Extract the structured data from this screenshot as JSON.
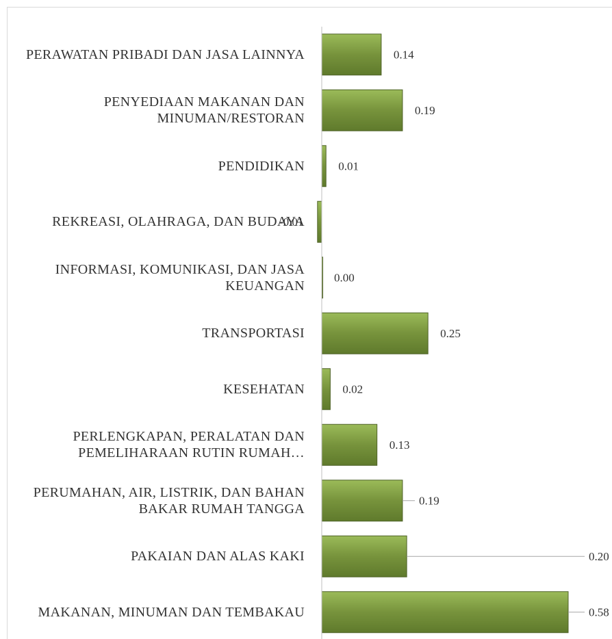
{
  "chart_data": {
    "type": "bar",
    "orientation": "horizontal",
    "color": "#77933c",
    "categories": [
      "PERAWATAN PRIBADI DAN JASA LAINNYA",
      "PENYEDIAAN MAKANAN DAN MINUMAN/RESTORAN",
      "PENDIDIKAN",
      "REKREASI, OLAHRAGA, DAN BUDAYA",
      "INFORMASI, KOMUNIKASI, DAN JASA KEUANGAN",
      "TRANSPORTASI",
      "KESEHATAN",
      "PERLENGKAPAN, PERALATAN DAN PEMELIHARAAN RUTIN RUMAH…",
      "PERUMAHAN, AIR, LISTRIK, DAN BAHAN BAKAR RUMAH TANGGA",
      "PAKAIAN DAN ALAS KAKI",
      "MAKANAN, MINUMAN DAN TEMBAKAU"
    ],
    "values": [
      0.14,
      0.19,
      0.01,
      -0.01,
      0.0,
      0.25,
      0.02,
      0.13,
      0.19,
      0.2,
      0.58
    ],
    "value_labels": [
      "0.14",
      "0.19",
      "0.01",
      "-0.01",
      "0.00",
      "0.25",
      "0.02",
      "0.13",
      "0.19",
      "0.20",
      "0.58"
    ]
  }
}
